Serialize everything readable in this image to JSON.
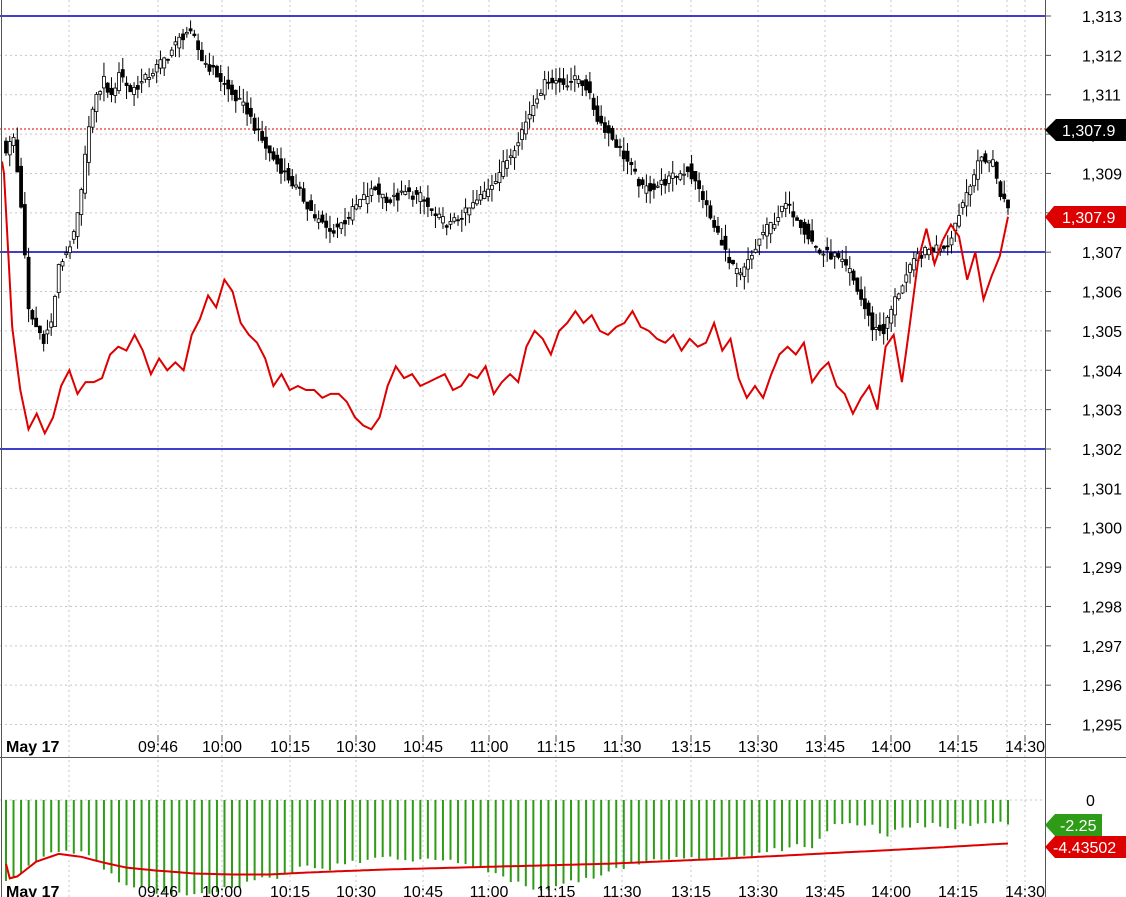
{
  "chart_data": [
    {
      "type": "candlestick",
      "date_label": "May 17",
      "x_ticks": [
        "09:46",
        "10:00",
        "10:15",
        "10:30",
        "10:45",
        "11:00",
        "11:15",
        "11:30",
        "13:15",
        "13:30",
        "13:45",
        "14:00",
        "14:15",
        "14:30"
      ],
      "y_ticks": [
        "1,313",
        "1,312",
        "1,311",
        "1,310",
        "1,309",
        "1,308",
        "1,307",
        "1,306",
        "1,305",
        "1,304",
        "1,303",
        "1,302",
        "1,301",
        "1,300",
        "1,299",
        "1,298",
        "1,297",
        "1,296",
        "1,295"
      ],
      "y_tick_values": [
        1313,
        1312,
        1311,
        1310,
        1309,
        1308,
        1307,
        1306,
        1305,
        1304,
        1303,
        1302,
        1301,
        1300,
        1299,
        1298,
        1297,
        1296,
        1295
      ],
      "ylim": [
        1294.4,
        1313.4
      ],
      "price_anchors": [
        [
          0,
          1309.6
        ],
        [
          2,
          1309.9
        ],
        [
          4,
          1308.2
        ],
        [
          6,
          1305.5
        ],
        [
          8,
          1305.1
        ],
        [
          10,
          1304.8
        ],
        [
          12,
          1305.2
        ],
        [
          14,
          1306.6
        ],
        [
          16,
          1307.0
        ],
        [
          18,
          1307.4
        ],
        [
          20,
          1308.5
        ],
        [
          22,
          1310.3
        ],
        [
          24,
          1310.9
        ],
        [
          26,
          1311.4
        ],
        [
          28,
          1310.9
        ],
        [
          30,
          1311.6
        ],
        [
          33,
          1311.1
        ],
        [
          36,
          1311.3
        ],
        [
          40,
          1311.7
        ],
        [
          43,
          1312.0
        ],
        [
          46,
          1312.4
        ],
        [
          48,
          1312.6
        ],
        [
          50,
          1312.4
        ],
        [
          52,
          1311.9
        ],
        [
          56,
          1311.5
        ],
        [
          60,
          1311.0
        ],
        [
          64,
          1310.6
        ],
        [
          67,
          1310.0
        ],
        [
          70,
          1309.5
        ],
        [
          74,
          1309.0
        ],
        [
          78,
          1308.5
        ],
        [
          82,
          1307.9
        ],
        [
          86,
          1307.5
        ],
        [
          90,
          1307.8
        ],
        [
          94,
          1308.3
        ],
        [
          98,
          1308.6
        ],
        [
          102,
          1308.3
        ],
        [
          106,
          1308.5
        ],
        [
          110,
          1308.4
        ],
        [
          114,
          1307.9
        ],
        [
          118,
          1307.7
        ],
        [
          122,
          1308.0
        ],
        [
          126,
          1308.4
        ],
        [
          130,
          1308.9
        ],
        [
          134,
          1309.5
        ],
        [
          138,
          1310.3
        ],
        [
          141,
          1311.0
        ],
        [
          144,
          1311.4
        ],
        [
          148,
          1311.3
        ],
        [
          152,
          1311.4
        ],
        [
          154,
          1311.2
        ],
        [
          157,
          1310.4
        ],
        [
          161,
          1309.9
        ],
        [
          165,
          1309.3
        ],
        [
          169,
          1308.6
        ],
        [
          173,
          1308.7
        ],
        [
          177,
          1308.9
        ],
        [
          181,
          1309.1
        ],
        [
          185,
          1308.4
        ],
        [
          188,
          1307.6
        ],
        [
          190,
          1307.3
        ],
        [
          192,
          1306.7
        ],
        [
          195,
          1306.4
        ],
        [
          198,
          1306.9
        ],
        [
          201,
          1307.5
        ],
        [
          204,
          1307.8
        ],
        [
          207,
          1308.2
        ],
        [
          210,
          1307.9
        ],
        [
          213,
          1307.4
        ],
        [
          216,
          1307.0
        ],
        [
          220,
          1306.9
        ],
        [
          224,
          1306.5
        ],
        [
          227,
          1305.8
        ],
        [
          230,
          1305.1
        ],
        [
          233,
          1305.0
        ],
        [
          236,
          1305.8
        ],
        [
          239,
          1306.4
        ],
        [
          242,
          1306.9
        ],
        [
          246,
          1307.1
        ],
        [
          250,
          1307.2
        ],
        [
          253,
          1308.0
        ],
        [
          256,
          1308.8
        ],
        [
          259,
          1309.4
        ],
        [
          262,
          1309.3
        ],
        [
          264,
          1308.5
        ],
        [
          266,
          1308.1
        ]
      ],
      "red_line": {
        "color": "#dd0000",
        "last_value": "1,307.9",
        "anchors": [
          [
            0,
            1309.0
          ],
          [
            2,
            1305.1
          ],
          [
            4,
            1303.5
          ],
          [
            6,
            1302.5
          ],
          [
            8,
            1302.9
          ],
          [
            10,
            1302.4
          ],
          [
            12,
            1302.8
          ],
          [
            14,
            1303.6
          ],
          [
            16,
            1304.0
          ],
          [
            18,
            1303.4
          ],
          [
            20,
            1303.7
          ],
          [
            22,
            1303.7
          ],
          [
            24,
            1303.8
          ],
          [
            26,
            1304.4
          ],
          [
            28,
            1304.6
          ],
          [
            30,
            1304.5
          ],
          [
            32,
            1304.9
          ],
          [
            34,
            1304.5
          ],
          [
            36,
            1303.9
          ],
          [
            38,
            1304.3
          ],
          [
            40,
            1304.0
          ],
          [
            42,
            1304.2
          ],
          [
            44,
            1304.0
          ],
          [
            46,
            1304.9
          ],
          [
            48,
            1305.3
          ],
          [
            50,
            1305.9
          ],
          [
            52,
            1305.6
          ],
          [
            54,
            1306.3
          ],
          [
            56,
            1306.0
          ],
          [
            58,
            1305.2
          ],
          [
            60,
            1304.9
          ],
          [
            62,
            1304.7
          ],
          [
            64,
            1304.3
          ],
          [
            66,
            1303.6
          ],
          [
            68,
            1303.9
          ],
          [
            70,
            1303.5
          ],
          [
            72,
            1303.6
          ],
          [
            74,
            1303.5
          ],
          [
            76,
            1303.5
          ],
          [
            78,
            1303.3
          ],
          [
            80,
            1303.4
          ],
          [
            82,
            1303.4
          ],
          [
            84,
            1303.2
          ],
          [
            86,
            1302.8
          ],
          [
            88,
            1302.6
          ],
          [
            90,
            1302.5
          ],
          [
            92,
            1302.8
          ],
          [
            94,
            1303.6
          ],
          [
            96,
            1304.1
          ],
          [
            98,
            1303.8
          ],
          [
            100,
            1303.9
          ],
          [
            102,
            1303.6
          ],
          [
            104,
            1303.7
          ],
          [
            106,
            1303.8
          ],
          [
            108,
            1303.9
          ],
          [
            110,
            1303.5
          ],
          [
            112,
            1303.6
          ],
          [
            114,
            1303.9
          ],
          [
            116,
            1303.8
          ],
          [
            118,
            1304.1
          ],
          [
            120,
            1303.4
          ],
          [
            122,
            1303.7
          ],
          [
            124,
            1303.9
          ],
          [
            126,
            1303.7
          ],
          [
            128,
            1304.6
          ],
          [
            130,
            1305.0
          ],
          [
            132,
            1304.8
          ],
          [
            134,
            1304.4
          ],
          [
            136,
            1305.0
          ],
          [
            138,
            1305.2
          ],
          [
            140,
            1305.5
          ],
          [
            142,
            1305.2
          ],
          [
            144,
            1305.4
          ],
          [
            146,
            1305.0
          ],
          [
            148,
            1304.9
          ],
          [
            150,
            1305.1
          ],
          [
            152,
            1305.2
          ],
          [
            154,
            1305.5
          ],
          [
            156,
            1305.1
          ],
          [
            158,
            1305.0
          ],
          [
            160,
            1304.8
          ],
          [
            162,
            1304.7
          ],
          [
            164,
            1304.9
          ],
          [
            166,
            1304.5
          ],
          [
            168,
            1304.8
          ],
          [
            170,
            1304.6
          ],
          [
            172,
            1304.7
          ],
          [
            174,
            1305.2
          ],
          [
            176,
            1304.5
          ],
          [
            178,
            1304.8
          ],
          [
            180,
            1303.8
          ],
          [
            182,
            1303.3
          ],
          [
            184,
            1303.6
          ],
          [
            186,
            1303.3
          ],
          [
            188,
            1303.9
          ],
          [
            190,
            1304.4
          ],
          [
            192,
            1304.6
          ],
          [
            194,
            1304.4
          ],
          [
            196,
            1304.7
          ],
          [
            198,
            1303.7
          ],
          [
            200,
            1304.0
          ],
          [
            202,
            1304.2
          ],
          [
            204,
            1303.6
          ],
          [
            206,
            1303.4
          ],
          [
            208,
            1302.9
          ],
          [
            210,
            1303.3
          ],
          [
            212,
            1303.6
          ],
          [
            214,
            1303.0
          ],
          [
            216,
            1304.6
          ],
          [
            218,
            1304.9
          ],
          [
            220,
            1303.7
          ],
          [
            222,
            1305.2
          ],
          [
            224,
            1306.8
          ],
          [
            226,
            1307.6
          ],
          [
            228,
            1306.7
          ],
          [
            230,
            1307.3
          ],
          [
            232,
            1307.7
          ],
          [
            234,
            1307.4
          ],
          [
            236,
            1306.3
          ],
          [
            238,
            1307.0
          ],
          [
            240,
            1305.8
          ],
          [
            242,
            1306.4
          ],
          [
            244,
            1306.9
          ],
          [
            246,
            1307.9
          ]
        ]
      }
    },
    {
      "type": "bar",
      "zero_label": "0",
      "last_bar_label": "-2.25",
      "signal_label": "-4.43502",
      "bar_color": "#2e9c16",
      "signal_color": "#dd0000",
      "ylim": [
        -11.0,
        2.0
      ],
      "bar_anchors": [
        [
          0,
          -8.0
        ],
        [
          3,
          -7.5
        ],
        [
          6,
          -6.8
        ],
        [
          10,
          -6.0
        ],
        [
          14,
          -5.2
        ],
        [
          18,
          -5.2
        ],
        [
          22,
          -5.8
        ],
        [
          26,
          -7.0
        ],
        [
          30,
          -8.5
        ],
        [
          34,
          -9.0
        ],
        [
          38,
          -9.2
        ],
        [
          42,
          -9.4
        ],
        [
          46,
          -9.6
        ],
        [
          50,
          -9.8
        ],
        [
          54,
          -9.5
        ],
        [
          58,
          -9.0
        ],
        [
          62,
          -8.6
        ],
        [
          66,
          -8.3
        ],
        [
          70,
          -8.0
        ],
        [
          74,
          -7.5
        ],
        [
          78,
          -7.0
        ],
        [
          82,
          -6.8
        ],
        [
          86,
          -6.9
        ],
        [
          90,
          -6.5
        ],
        [
          94,
          -6.2
        ],
        [
          98,
          -6.0
        ],
        [
          102,
          -5.8
        ],
        [
          106,
          -6.0
        ],
        [
          110,
          -6.2
        ],
        [
          114,
          -5.9
        ],
        [
          118,
          -6.0
        ],
        [
          122,
          -6.4
        ],
        [
          126,
          -7.0
        ],
        [
          130,
          -7.5
        ],
        [
          134,
          -8.2
        ],
        [
          138,
          -8.8
        ],
        [
          142,
          -9.2
        ],
        [
          146,
          -9.0
        ],
        [
          150,
          -8.5
        ],
        [
          154,
          -8.0
        ],
        [
          158,
          -7.5
        ],
        [
          162,
          -7.0
        ],
        [
          166,
          -6.5
        ],
        [
          170,
          -6.5
        ],
        [
          174,
          -6.0
        ],
        [
          178,
          -6.0
        ],
        [
          182,
          -5.8
        ],
        [
          186,
          -6.2
        ],
        [
          190,
          -6.0
        ],
        [
          194,
          -5.7
        ],
        [
          198,
          -5.8
        ],
        [
          202,
          -5.4
        ],
        [
          206,
          -5.0
        ],
        [
          210,
          -4.8
        ],
        [
          214,
          -5.0
        ],
        [
          218,
          -3.0
        ],
        [
          222,
          -2.5
        ],
        [
          226,
          -2.5
        ],
        [
          230,
          -2.8
        ],
        [
          234,
          -3.6
        ],
        [
          238,
          -3.0
        ],
        [
          242,
          -2.5
        ],
        [
          246,
          -2.6
        ],
        [
          250,
          -3.0
        ],
        [
          254,
          -2.7
        ],
        [
          258,
          -2.6
        ],
        [
          262,
          -2.4
        ],
        [
          266,
          -2.25
        ]
      ],
      "signal_anchors": [
        [
          0,
          -6.5
        ],
        [
          1,
          -8.0
        ],
        [
          3,
          -7.8
        ],
        [
          8,
          -6.3
        ],
        [
          14,
          -5.5
        ],
        [
          20,
          -5.8
        ],
        [
          26,
          -6.4
        ],
        [
          32,
          -6.9
        ],
        [
          40,
          -7.2
        ],
        [
          50,
          -7.5
        ],
        [
          60,
          -7.6
        ],
        [
          70,
          -7.6
        ],
        [
          80,
          -7.4
        ],
        [
          100,
          -7.1
        ],
        [
          130,
          -6.8
        ],
        [
          160,
          -6.5
        ],
        [
          190,
          -6.0
        ],
        [
          220,
          -5.4
        ],
        [
          245,
          -4.9
        ],
        [
          266,
          -4.43502
        ]
      ]
    }
  ]
}
